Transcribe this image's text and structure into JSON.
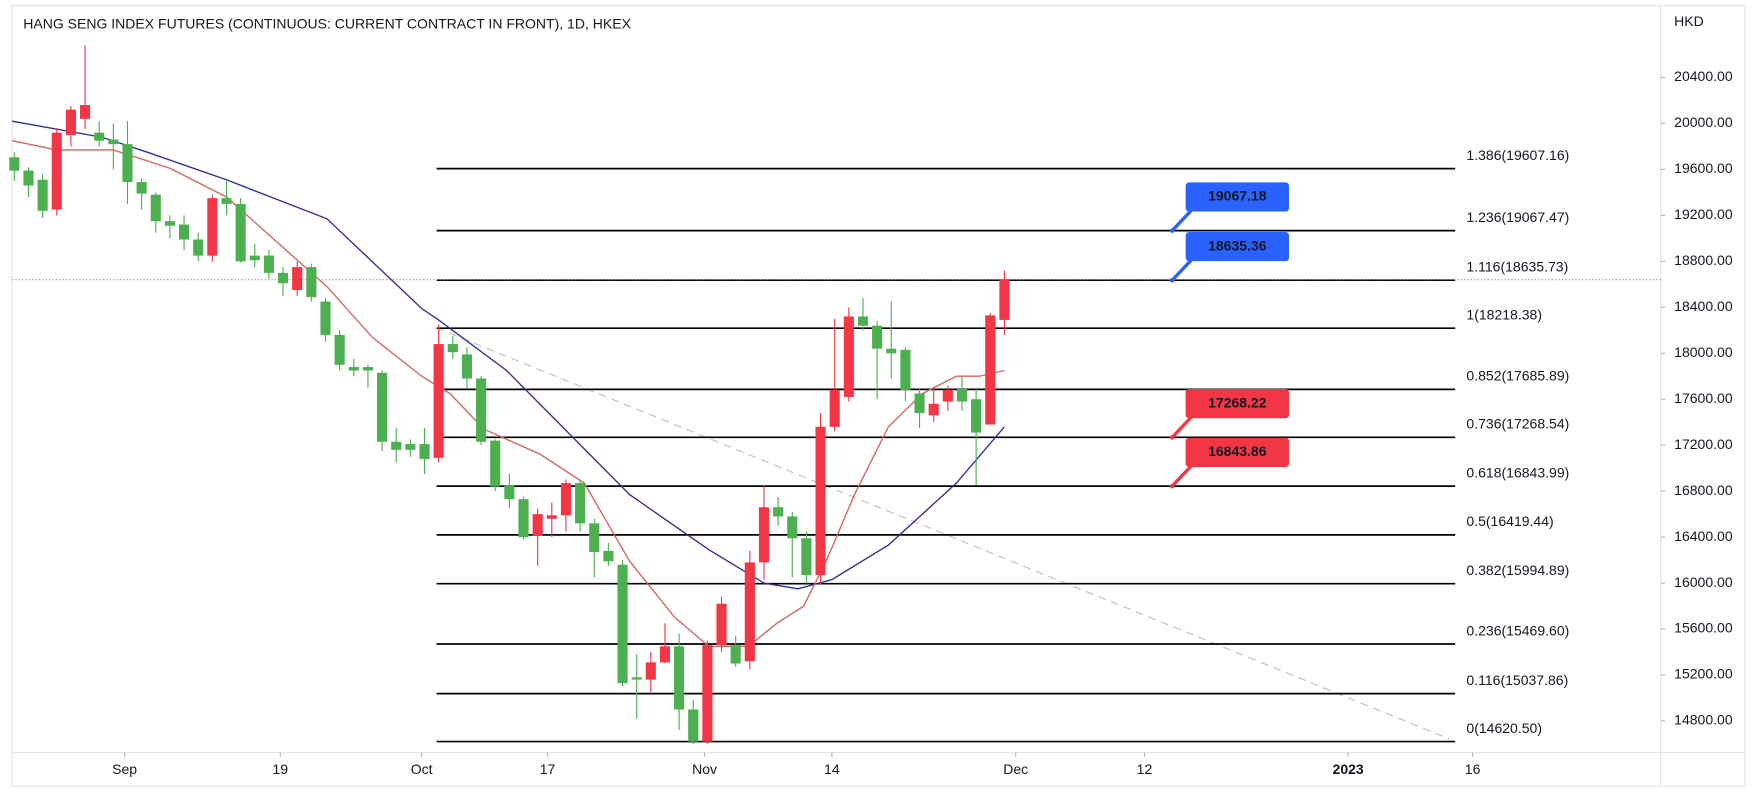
{
  "chart_data": {
    "type": "candlestick",
    "title": "HANG SENG INDEX FUTURES (CONTINUOUS: CURRENT CONTRACT IN FRONT), 1D, HKEX",
    "y_axis_label": "HKD",
    "categories": [
      null,
      null,
      null,
      null,
      null,
      null,
      null,
      null,
      null,
      null,
      null,
      null,
      null,
      null,
      null,
      null,
      null,
      null,
      null,
      null,
      null,
      null,
      null,
      null,
      null,
      null,
      null,
      null,
      null,
      null,
      null,
      null,
      null,
      null,
      null,
      null,
      null,
      null,
      null,
      null,
      null,
      null,
      null,
      null,
      null,
      null,
      null,
      null,
      null,
      null,
      null,
      null,
      null,
      null,
      null,
      null,
      null,
      null,
      null,
      null,
      null,
      null,
      null,
      null,
      null,
      null,
      null,
      null,
      null,
      null,
      null
    ],
    "open": [
      19706,
      19590,
      19510,
      19250,
      19900,
      20040,
      19920,
      19860,
      19820,
      19490,
      19380,
      19150,
      19120,
      18990,
      18850,
      19350,
      19300,
      18850,
      18850,
      18700,
      18550,
      18750,
      18450,
      18160,
      17880,
      17880,
      17830,
      17230,
      17210,
      17210,
      17090,
      18080,
      17990,
      17780,
      17240,
      16850,
      16730,
      16410,
      16560,
      16590,
      16870,
      16520,
      16280,
      16160,
      15180,
      15160,
      15310,
      15450,
      14900,
      14620,
      15460,
      15460,
      15320,
      16180,
      16660,
      16580,
      16390,
      16070,
      17360,
      17620,
      18320,
      18240,
      18040,
      18030,
      17650,
      17460,
      17580,
      17690,
      17600,
      17380,
      18290
    ],
    "high": [
      19750,
      19620,
      19560,
      19960,
      20150,
      20680,
      20020,
      20000,
      20020,
      19520,
      19400,
      19200,
      19200,
      19050,
      19380,
      19500,
      19350,
      18950,
      18900,
      18750,
      18800,
      18780,
      18480,
      18200,
      17950,
      17900,
      17850,
      17350,
      17250,
      17350,
      18250,
      18150,
      18050,
      17800,
      17250,
      16950,
      16750,
      16650,
      16700,
      16900,
      16900,
      16560,
      16350,
      16200,
      15380,
      15400,
      15650,
      15560,
      14980,
      15500,
      15880,
      15540,
      16280,
      16850,
      16750,
      16620,
      16450,
      17480,
      18300,
      18400,
      18480,
      18280,
      18450,
      18050,
      17700,
      17700,
      17720,
      17800,
      17700,
      18350,
      18720
    ],
    "low": [
      19500,
      19360,
      19180,
      19200,
      19800,
      19950,
      19800,
      19600,
      19300,
      19250,
      19050,
      19000,
      18900,
      18800,
      18800,
      19200,
      18790,
      18750,
      18650,
      18500,
      18500,
      18450,
      18100,
      17850,
      17800,
      17700,
      17150,
      17050,
      17100,
      16950,
      17050,
      17950,
      17700,
      17200,
      16800,
      16650,
      16380,
      16150,
      16400,
      16450,
      16450,
      16050,
      16150,
      15100,
      14820,
      15050,
      15300,
      14720,
      14600,
      14600,
      15400,
      15270,
      15250,
      16030,
      16500,
      16050,
      16000,
      15990,
      17320,
      17580,
      18200,
      17600,
      17780,
      17580,
      17350,
      17400,
      17500,
      17500,
      16850,
      17380,
      18160
    ],
    "close": [
      19589,
      19460,
      19240,
      19920,
      20120,
      20160,
      19850,
      19820,
      19490,
      19390,
      19150,
      19110,
      18990,
      18850,
      19350,
      19300,
      18800,
      18810,
      18700,
      18610,
      18750,
      18490,
      18160,
      17900,
      17850,
      17850,
      17230,
      17160,
      17160,
      17080,
      18080,
      18010,
      17780,
      17230,
      16840,
      16730,
      16400,
      16600,
      16590,
      16870,
      16520,
      16270,
      16190,
      15130,
      15160,
      15310,
      15450,
      14900,
      14620,
      15460,
      15820,
      15300,
      16180,
      16660,
      16580,
      16390,
      16070,
      17360,
      17680,
      18320,
      18240,
      18040,
      18000,
      17680,
      17480,
      17560,
      17680,
      17580,
      17310,
      18330,
      18640
    ],
    "up_color": "#f23645",
    "down_color": "#4caf50",
    "lines": [
      {
        "color": "#2b2f99",
        "x": [
          -0.16,
          6.2,
          9.4,
          15,
          22.1,
          28.8,
          30,
          34.8,
          43.5,
          49.1,
          53,
          55.4,
          57.8,
          61.8,
          66.6,
          70
        ],
        "values": [
          20020,
          19880,
          19750,
          19510,
          19170,
          18390,
          18290,
          17850,
          16770,
          16290,
          16000,
          15950,
          16030,
          16330,
          16870,
          17360
        ]
      },
      {
        "color": "#e0615f",
        "x": [
          -0.16,
          3,
          7,
          11,
          15,
          18.1,
          22.1,
          25.3,
          28.8,
          30.8,
          33.2,
          37.2,
          40.3,
          43.5,
          46.7,
          49.1,
          51.9,
          53.9,
          55.8,
          57.4,
          59.4,
          61.8,
          64.2,
          66.6,
          68.2,
          70
        ],
        "values": [
          19850,
          19770,
          19770,
          19610,
          19360,
          19020,
          18580,
          18140,
          17800,
          17650,
          17340,
          17120,
          16870,
          16190,
          15700,
          15450,
          15450,
          15650,
          15800,
          16190,
          16770,
          17360,
          17650,
          17800,
          17800,
          17850
        ]
      }
    ],
    "fib_levels": [
      {
        "value": 19607.16,
        "label": "1.386(19607.16)"
      },
      {
        "value": 19067.47,
        "label": "1.236(19067.47)"
      },
      {
        "value": 18635.73,
        "label": "1.116(18635.73)"
      },
      {
        "value": 18218.38,
        "label": "1(18218.38)"
      },
      {
        "value": 17685.89,
        "label": "0.852(17685.89)"
      },
      {
        "value": 17268.54,
        "label": "0.736(17268.54)"
      },
      {
        "value": 16843.99,
        "label": "0.618(16843.99)"
      },
      {
        "value": 16419.44,
        "label": "0.5(16419.44)"
      },
      {
        "value": 15994.89,
        "label": "0.382(15994.89)"
      },
      {
        "value": 15469.6,
        "label": "0.236(15469.60)"
      },
      {
        "value": 15037.86,
        "label": "0.116(15037.86)"
      },
      {
        "value": 14620.5,
        "label": "0(14620.50)"
      }
    ],
    "callouts": [
      {
        "value": 19067.18,
        "color": "#2962ff"
      },
      {
        "value": 18635.36,
        "color": "#2962ff"
      },
      {
        "value": 17268.22,
        "color": "#f23645"
      },
      {
        "value": 16843.86,
        "color": "#f23645"
      }
    ],
    "ylim": [
      14526,
      21006
    ],
    "yticks": [
      {
        "value": 14800,
        "label": "14800.00"
      },
      {
        "value": 15200,
        "label": "15200.00"
      },
      {
        "value": 15600,
        "label": "15600.00"
      },
      {
        "value": 16000,
        "label": "16000.00"
      },
      {
        "value": 16400,
        "label": "16400.00"
      },
      {
        "value": 16800,
        "label": "16800.00"
      },
      {
        "value": 17200,
        "label": "17200.00"
      },
      {
        "value": 17600,
        "label": "17600.00"
      },
      {
        "value": 18000,
        "label": "18000.00"
      },
      {
        "value": 18400,
        "label": "18400.00"
      },
      {
        "value": 18800,
        "label": "18800.00"
      },
      {
        "value": 19200,
        "label": "19200.00"
      },
      {
        "value": 19600,
        "label": "19600.00"
      },
      {
        "value": 20000,
        "label": "20000.00"
      },
      {
        "value": 20400,
        "label": "20400.00"
      }
    ],
    "xlim": [
      -0.16,
      116.4
    ],
    "xticks": [
      {
        "value": 7.8,
        "label": "Sep"
      },
      {
        "value": 18.8,
        "label": "19"
      },
      {
        "value": 28.8,
        "label": "Oct"
      },
      {
        "value": 37.7,
        "label": "17"
      },
      {
        "value": 48.8,
        "label": "Nov"
      },
      {
        "value": 57.8,
        "label": "14"
      },
      {
        "value": 70.8,
        "label": "Dec"
      },
      {
        "value": 79.9,
        "label": "12"
      },
      {
        "value": 94.3,
        "label": "2023"
      },
      {
        "value": 103.1,
        "label": "16"
      }
    ]
  }
}
